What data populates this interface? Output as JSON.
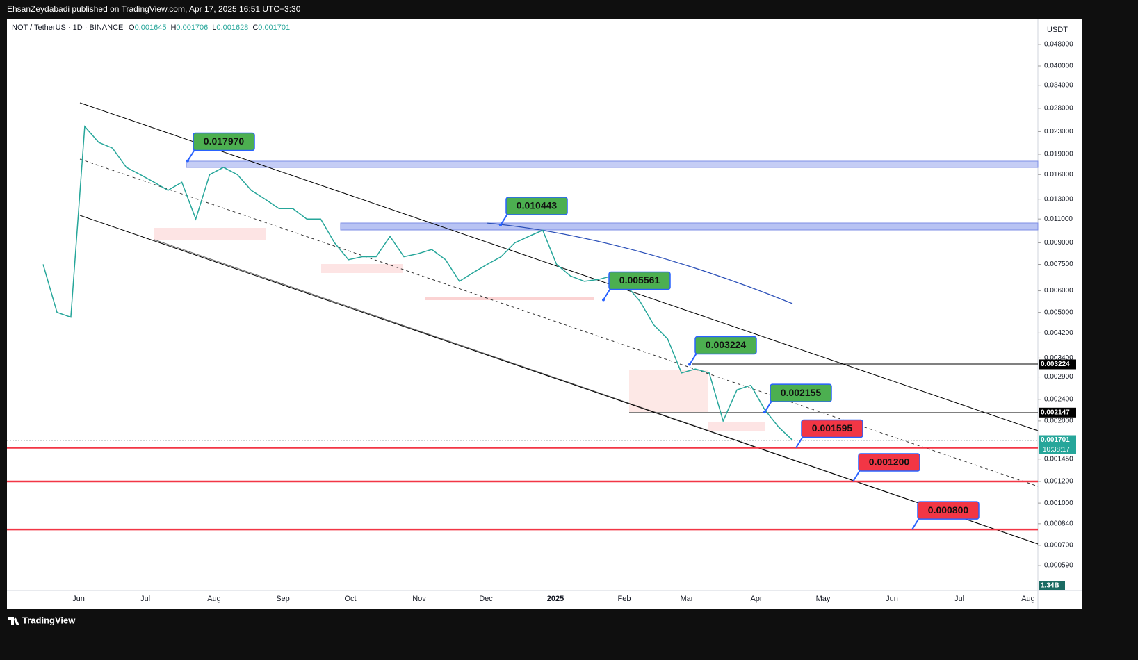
{
  "header": {
    "published": "EhsanZeydabadi published on TradingView.com, Apr 17, 2025 16:51 UTC+3:30"
  },
  "chart_data": {
    "type": "line",
    "title": "NOT / TetherUS · 1D · BINANCE",
    "ohlc": [
      {
        "key": "O",
        "value": 0.001645
      },
      {
        "key": "H",
        "value": 0.001706
      },
      {
        "key": "L",
        "value": 0.001628
      },
      {
        "key": "C",
        "value": 0.001701
      }
    ],
    "currency": "USDT",
    "log_scale": true,
    "series": [
      {
        "color": "#26a69a",
        "values": [
          0.0075,
          0.005,
          0.0048,
          0.024,
          0.021,
          0.02,
          0.017,
          0.016,
          0.015,
          0.014,
          0.015,
          0.011,
          0.016,
          0.017,
          0.016,
          0.014,
          0.013,
          0.012,
          0.012,
          0.011,
          0.011,
          0.009,
          0.0078,
          0.008,
          0.008,
          0.0095,
          0.008,
          0.0082,
          0.0085,
          0.0078,
          0.0065,
          0.007,
          0.0075,
          0.008,
          0.009,
          0.0095,
          0.01,
          0.0075,
          0.0068,
          0.0065,
          0.0066,
          0.0068,
          0.0063,
          0.0055,
          0.0045,
          0.004,
          0.003,
          0.0031,
          0.003,
          0.002,
          0.0026,
          0.0027,
          0.0022,
          0.0019,
          0.0017
        ]
      }
    ],
    "ylim": [
      0.000478,
      0.0596
    ],
    "yticks": [
      {
        "value": 0.048,
        "label": "0.048000"
      },
      {
        "value": 0.04,
        "label": "0.040000"
      },
      {
        "value": 0.034,
        "label": "0.034000"
      },
      {
        "value": 0.028,
        "label": "0.028000"
      },
      {
        "value": 0.023,
        "label": "0.023000"
      },
      {
        "value": 0.019,
        "label": "0.019000"
      },
      {
        "value": 0.016,
        "label": "0.016000"
      },
      {
        "value": 0.013,
        "label": "0.013000"
      },
      {
        "value": 0.011,
        "label": "0.011000"
      },
      {
        "value": 0.009,
        "label": "0.009000"
      },
      {
        "value": 0.0075,
        "label": "0.007500"
      },
      {
        "value": 0.006,
        "label": "0.006000"
      },
      {
        "value": 0.005,
        "label": "0.005000"
      },
      {
        "value": 0.0042,
        "label": "0.004200"
      },
      {
        "value": 0.0034,
        "label": "0.003400"
      },
      {
        "value": 0.0029,
        "label": "0.002900"
      },
      {
        "value": 0.0024,
        "label": "0.002400"
      },
      {
        "value": 0.002,
        "label": "0.002000"
      },
      {
        "value": 0.00145,
        "label": "0.001450"
      },
      {
        "value": 0.0012,
        "label": "0.001200"
      },
      {
        "value": 0.001,
        "label": "0.001000"
      },
      {
        "value": 0.00084,
        "label": "0.000840"
      },
      {
        "value": 0.0007,
        "label": "0.000700"
      },
      {
        "value": 0.00059,
        "label": "0.000590"
      }
    ],
    "time_axis": [
      "Jun",
      "Jul",
      "Aug",
      "Sep",
      "Oct",
      "Nov",
      "Dec",
      "2025",
      "Feb",
      "Mar",
      "Apr",
      "May",
      "Jun",
      "Jul",
      "Aug"
    ],
    "annotations": [
      {
        "value": 0.01797,
        "label": "0.017970",
        "color": "#4caf50"
      },
      {
        "value": 0.010443,
        "label": "0.010443",
        "color": "#4caf50"
      },
      {
        "value": 0.005561,
        "label": "0.005561",
        "color": "#4caf50"
      },
      {
        "value": 0.003224,
        "label": "0.003224",
        "color": "#4caf50"
      },
      {
        "value": 0.002155,
        "label": "0.002155",
        "color": "#4caf50"
      },
      {
        "value": 0.001595,
        "label": "0.001595",
        "color": "#f23645"
      },
      {
        "value": 0.0012,
        "label": "0.001200",
        "color": "#f23645"
      },
      {
        "value": 0.0008,
        "label": "0.000800",
        "color": "#f23645"
      }
    ],
    "price_labels": [
      {
        "value": 0.003224,
        "label": "0.003224",
        "color": "#000000"
      },
      {
        "value": 0.002147,
        "label": "0.002147",
        "color": "#000000"
      },
      {
        "value": 0.001701,
        "label": "0.001701",
        "color": "#26a69a"
      }
    ],
    "countdown": "10:38:17",
    "volume_label": "1.34B",
    "footer": "TradingView"
  }
}
